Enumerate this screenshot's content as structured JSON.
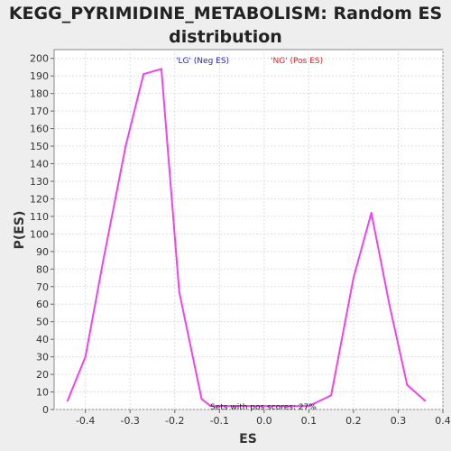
{
  "chart_data": {
    "type": "line",
    "title_line1": "KEGG_PYRIMIDINE_METABOLISM: Random ES",
    "title_line2": "distribution",
    "xlabel": "ES",
    "ylabel": "P(ES)",
    "xlim": [
      -0.47,
      0.4
    ],
    "ylim": [
      0,
      205
    ],
    "x_ticks": [
      -0.4,
      -0.3,
      -0.2,
      -0.1,
      0.0,
      0.1,
      0.2,
      0.3,
      0.4
    ],
    "x_tick_labels": [
      "-0.4",
      "-0.3",
      "-0.2",
      "-0.1",
      "0.0",
      "0.1",
      "0.2",
      "0.3",
      "0.4"
    ],
    "y_ticks": [
      0,
      10,
      20,
      30,
      40,
      50,
      60,
      70,
      80,
      90,
      100,
      110,
      120,
      130,
      140,
      150,
      160,
      170,
      180,
      190,
      200
    ],
    "grid": true,
    "line_color": "#ee44ee",
    "legend": [
      {
        "label": "'LG' (Neg ES)",
        "color": "#2222cc"
      },
      {
        "label": "'NG' (Pos ES)",
        "color": "#dd2222"
      }
    ],
    "annotation": "Sets with pos scores: 27%",
    "series": [
      {
        "x": [
          -0.44,
          -0.4,
          -0.36,
          -0.31,
          -0.27,
          -0.23,
          -0.19,
          -0.14,
          -0.12,
          0.1,
          0.15,
          0.2,
          0.24,
          0.28,
          0.32,
          0.36
        ],
        "values": [
          5,
          30,
          85,
          150,
          191,
          194,
          67,
          6,
          2,
          2,
          8,
          75,
          112,
          60,
          14,
          5
        ]
      }
    ]
  }
}
